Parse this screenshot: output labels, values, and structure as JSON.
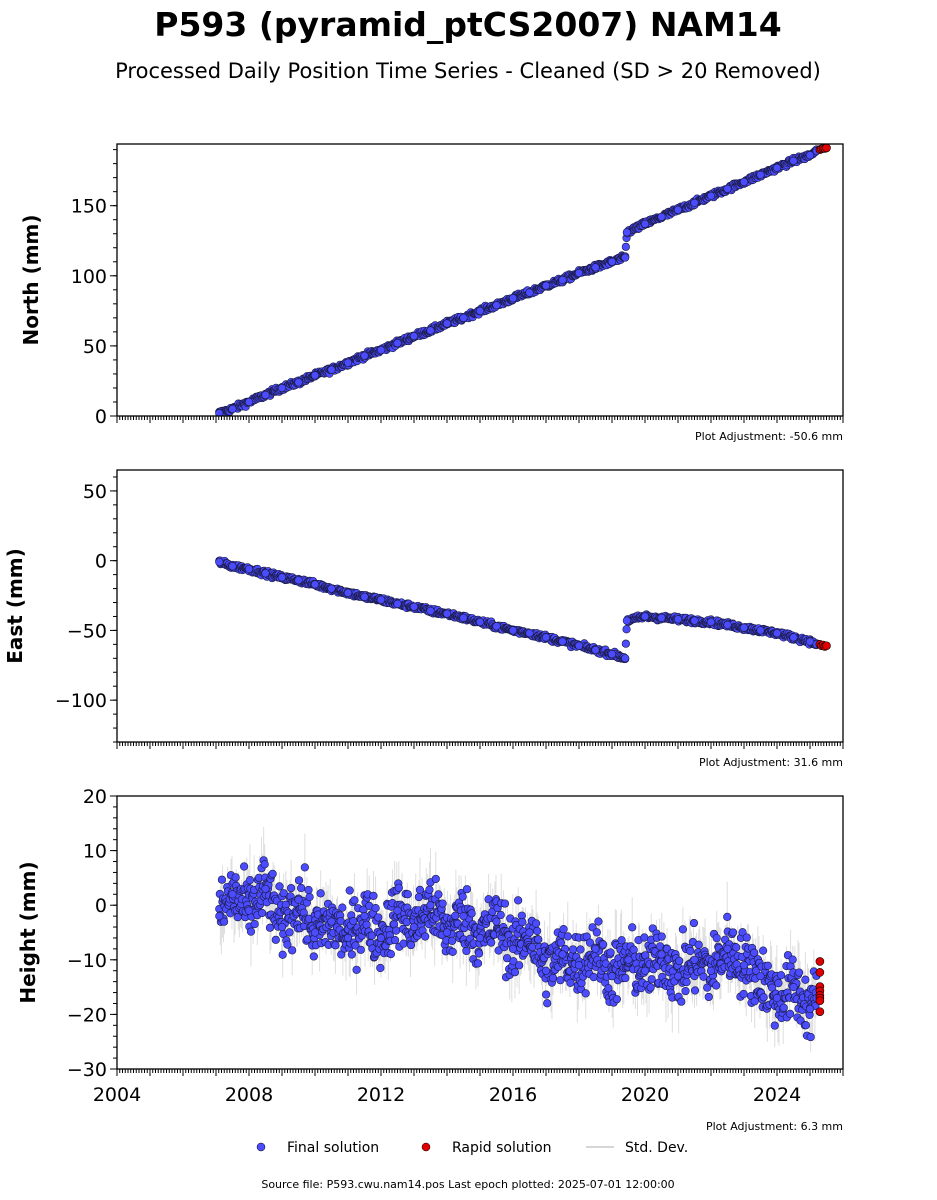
{
  "header": {
    "title": "P593 (pyramid_ptCS2007) NAM14",
    "subtitle": "Processed Daily Position Time Series - Cleaned (SD > 20 Removed)"
  },
  "chart_data": [
    {
      "type": "scatter",
      "ylabel": "North (mm)",
      "xlim": [
        2004.0,
        2026.0
      ],
      "ylim": [
        0,
        194
      ],
      "yticks": [
        0,
        50,
        100,
        150
      ],
      "ytick_labels": [
        "0",
        "50",
        "100",
        "150"
      ],
      "adjustment": "Plot Adjustment: -50.6 mm",
      "series": [
        {
          "name": "Final solution",
          "color": "#4b4bff",
          "role": "final",
          "x": [
            2007.1,
            2007.5,
            2008.0,
            2008.5,
            2009.0,
            2009.5,
            2010.0,
            2010.5,
            2011.0,
            2011.5,
            2012.0,
            2012.5,
            2013.0,
            2013.5,
            2014.0,
            2014.5,
            2015.0,
            2015.5,
            2016.0,
            2016.5,
            2017.0,
            2017.5,
            2018.0,
            2018.5,
            2019.0,
            2019.4,
            2019.45,
            2020.0,
            2020.5,
            2021.0,
            2021.5,
            2022.0,
            2022.5,
            2023.0,
            2023.5,
            2024.0,
            2024.5,
            2025.0,
            2025.2
          ],
          "y": [
            2,
            5,
            10,
            15,
            20,
            24,
            29,
            33,
            38,
            43,
            47,
            52,
            57,
            61,
            66,
            70,
            75,
            79,
            84,
            88,
            93,
            97,
            102,
            106,
            110,
            113,
            131,
            137,
            142,
            147,
            152,
            157,
            162,
            167,
            172,
            177,
            182,
            186,
            189
          ]
        },
        {
          "name": "Rapid solution",
          "color": "#e00000",
          "role": "rapid",
          "x": [
            2025.3,
            2025.35,
            2025.4,
            2025.45,
            2025.5
          ],
          "y": [
            190,
            190.5,
            191,
            190.8,
            191.2
          ]
        }
      ]
    },
    {
      "type": "scatter",
      "ylabel": "East (mm)",
      "xlim": [
        2004.0,
        2026.0
      ],
      "ylim": [
        -130,
        65
      ],
      "yticks": [
        -100,
        -50,
        0,
        50
      ],
      "ytick_labels": [
        "−100",
        "−50",
        "0",
        "50"
      ],
      "adjustment": "Plot Adjustment: 31.6 mm",
      "series": [
        {
          "name": "Final solution",
          "color": "#4b4bff",
          "role": "final",
          "x": [
            2007.1,
            2007.5,
            2008.0,
            2008.5,
            2009.0,
            2009.5,
            2010.0,
            2010.5,
            2011.0,
            2011.5,
            2012.0,
            2012.5,
            2013.0,
            2013.5,
            2014.0,
            2014.5,
            2015.0,
            2015.5,
            2016.0,
            2016.5,
            2017.0,
            2017.5,
            2018.0,
            2018.5,
            2019.0,
            2019.4,
            2019.45,
            2020.0,
            2020.5,
            2021.0,
            2021.5,
            2022.0,
            2022.5,
            2023.0,
            2023.5,
            2024.0,
            2024.5,
            2025.0,
            2025.2
          ],
          "y": [
            -1,
            -4,
            -6,
            -9,
            -12,
            -14,
            -17,
            -20,
            -23,
            -26,
            -28,
            -31,
            -33,
            -36,
            -38,
            -41,
            -44,
            -47,
            -50,
            -52,
            -55,
            -58,
            -61,
            -64,
            -67,
            -70,
            -43,
            -40,
            -41,
            -42,
            -43,
            -44,
            -46,
            -48,
            -50,
            -52,
            -55,
            -58,
            -60
          ]
        },
        {
          "name": "Rapid solution",
          "color": "#e00000",
          "role": "rapid",
          "x": [
            2025.3,
            2025.35,
            2025.4,
            2025.45,
            2025.5
          ],
          "y": [
            -60,
            -61,
            -60.5,
            -61.5,
            -61
          ]
        }
      ]
    },
    {
      "type": "scatter",
      "ylabel": "Height (mm)",
      "xlim": [
        2004.0,
        2026.0
      ],
      "ylim": [
        -30,
        20
      ],
      "yticks": [
        -30,
        -20,
        -10,
        0,
        10,
        20
      ],
      "ytick_labels": [
        "−30",
        "−20",
        "−10",
        "0",
        "10",
        "20"
      ],
      "xticks": [
        2004,
        2008,
        2012,
        2016,
        2020,
        2024
      ],
      "xtick_labels": [
        "2004",
        "2008",
        "2012",
        "2016",
        "2020",
        "2024"
      ],
      "adjustment": "Plot Adjustment: 6.3 mm",
      "series": [
        {
          "name": "Final solution",
          "color": "#4b4bff",
          "role": "final",
          "x": [
            2007.1,
            2007.5,
            2008.0,
            2008.5,
            2009.0,
            2009.5,
            2010.0,
            2010.5,
            2011.0,
            2011.5,
            2012.0,
            2012.5,
            2013.0,
            2013.5,
            2014.0,
            2014.5,
            2015.0,
            2015.5,
            2016.0,
            2016.5,
            2017.0,
            2017.5,
            2018.0,
            2018.5,
            2019.0,
            2019.5,
            2020.0,
            2020.5,
            2021.0,
            2021.5,
            2022.0,
            2022.5,
            2023.0,
            2023.5,
            2024.0,
            2024.5,
            2025.0,
            2025.2
          ],
          "y": [
            -2,
            2,
            -1,
            3,
            -4,
            1,
            -5,
            -3,
            -6,
            -2,
            -6,
            -1,
            -4,
            0,
            -5,
            -2,
            -6,
            -3,
            -8,
            -5,
            -12,
            -9,
            -11,
            -8,
            -13,
            -10,
            -12,
            -9,
            -13,
            -10,
            -12,
            -8,
            -11,
            -13,
            -17,
            -15,
            -19,
            -17
          ]
        },
        {
          "name": "Rapid solution",
          "color": "#e00000",
          "role": "rapid",
          "x": [
            2025.3,
            2025.3,
            2025.3,
            2025.3,
            2025.3,
            2025.3,
            2025.3,
            2025.3
          ],
          "y": [
            -10.3,
            -12.3,
            -14.9,
            -15.7,
            -16.5,
            -17,
            -17.5,
            -19.5
          ]
        }
      ]
    }
  ],
  "legend": {
    "final": "Final solution",
    "rapid": "Rapid solution",
    "std": "Std. Dev."
  },
  "footer": {
    "source": "Source file: P593.cwu.nam14.pos  Last epoch plotted: 2025-07-01 12:00:00"
  }
}
